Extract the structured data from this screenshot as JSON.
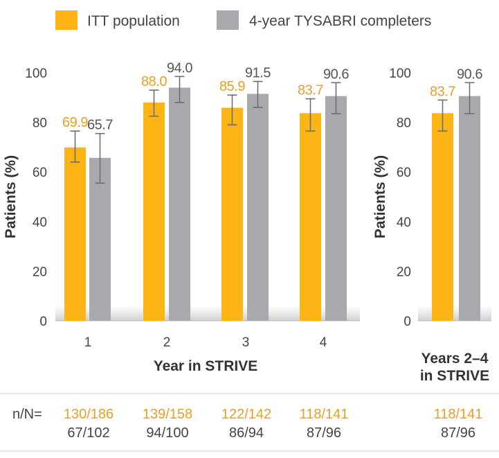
{
  "colors": {
    "itt": "#FDB515",
    "completers": "#A7A9AC",
    "itt_text": "#E8A020",
    "axis": "#888888",
    "error": "#6d6e71",
    "rule": "#cccccc"
  },
  "legend": [
    {
      "name": "ITT population",
      "color": "#FDB515"
    },
    {
      "name": "4-year TYSABRI completers",
      "color": "#A7A9AC"
    }
  ],
  "chart_data": [
    {
      "type": "bar",
      "ylabel": "Patients (%)",
      "xlabel": "Year in STRIVE",
      "ylim": [
        0,
        100
      ],
      "yticks": [
        0,
        20,
        40,
        60,
        80,
        100
      ],
      "categories": [
        "1",
        "2",
        "3",
        "4"
      ],
      "series": [
        {
          "name": "ITT population",
          "values": [
            69.9,
            88.0,
            85.9,
            83.7
          ],
          "error_low": [
            64.0,
            82.5,
            79.0,
            76.5
          ],
          "error_high": [
            76.5,
            93.0,
            91.0,
            89.5
          ]
        },
        {
          "name": "4-year TYSABRI completers",
          "values": [
            65.7,
            94.0,
            91.5,
            90.6
          ],
          "error_low": [
            55.5,
            88.0,
            86.0,
            83.5
          ],
          "error_high": [
            75.5,
            98.5,
            96.5,
            96.0
          ]
        }
      ],
      "value_labels": [
        [
          "69.9",
          "88.0",
          "85.9",
          "83.7"
        ],
        [
          "65.7",
          "94.0",
          "91.5",
          "90.6"
        ]
      ]
    },
    {
      "type": "bar",
      "ylabel": "Patients (%)",
      "xlabel_lines": [
        "Years 2–4",
        "in STRIVE"
      ],
      "ylim": [
        0,
        100
      ],
      "yticks": [
        0,
        20,
        40,
        60,
        80,
        100
      ],
      "categories": [
        ""
      ],
      "series": [
        {
          "name": "ITT population",
          "values": [
            83.7
          ],
          "error_low": [
            76.5
          ],
          "error_high": [
            89.0
          ]
        },
        {
          "name": "4-year TYSABRI completers",
          "values": [
            90.6
          ],
          "error_low": [
            83.5
          ],
          "error_high": [
            96.0
          ]
        }
      ],
      "value_labels": [
        [
          "83.7"
        ],
        [
          "90.6"
        ]
      ]
    }
  ],
  "nn": {
    "label": "n/N=",
    "itt": [
      "130/186",
      "139/158",
      "122/142",
      "118/141",
      "118/141"
    ],
    "completers": [
      "67/102",
      "94/100",
      "86/94",
      "87/96",
      "87/96"
    ]
  }
}
